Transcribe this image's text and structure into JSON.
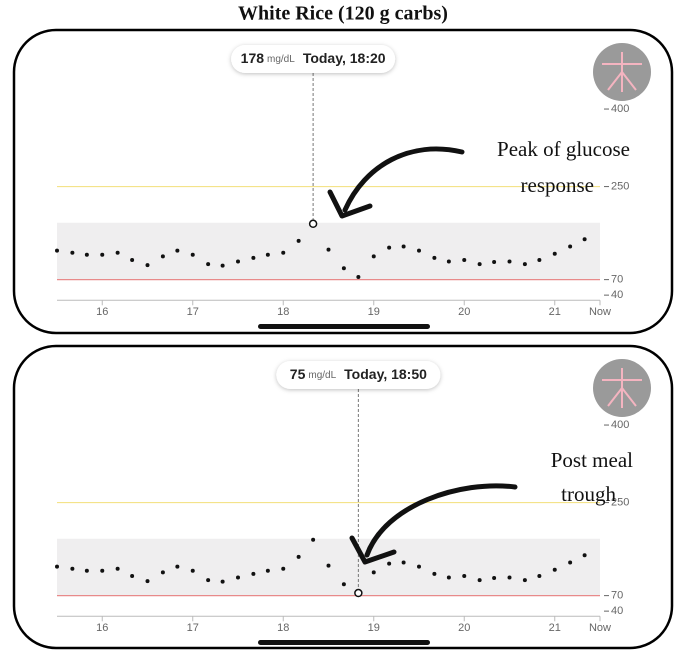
{
  "title": "White Rice (120 g carbs)",
  "chart_data": [
    {
      "type": "scatter",
      "x": [
        15.5,
        15.67,
        15.83,
        16,
        16.17,
        16.33,
        16.5,
        16.67,
        16.83,
        17,
        17.17,
        17.33,
        17.5,
        17.67,
        17.83,
        18,
        18.17,
        18.33,
        18.5,
        18.67,
        18.83,
        19,
        19.17,
        19.33,
        19.5,
        19.67,
        19.83,
        20,
        20.17,
        20.33,
        20.5,
        20.67,
        20.83,
        21,
        21.17,
        21.33
      ],
      "values": [
        126,
        122,
        118,
        118,
        122,
        108,
        98,
        115,
        126,
        118,
        100,
        97,
        105,
        112,
        118,
        122,
        145,
        178,
        128,
        92,
        75,
        115,
        132,
        134,
        126,
        112,
        105,
        108,
        100,
        104,
        105,
        100,
        108,
        120,
        134,
        148
      ],
      "color": "#111111",
      "xlim": [
        15.5,
        21.5
      ],
      "xticks": [
        16,
        17,
        18,
        19,
        20,
        21,
        {
          "value": 21.5,
          "label": "Now"
        }
      ],
      "ylim": [
        30,
        420
      ],
      "yticks": [
        40,
        70,
        250,
        400
      ],
      "target_range": [
        70,
        180
      ],
      "high_line": 250,
      "low_line": 70,
      "tooltip": {
        "x": 18.33,
        "value": 178,
        "unit": "mg/dL",
        "label": "Today, 18:20"
      },
      "annotation": [
        "Peak of glucose",
        "response"
      ]
    },
    {
      "type": "scatter",
      "x": [
        15.5,
        15.67,
        15.83,
        16,
        16.17,
        16.33,
        16.5,
        16.67,
        16.83,
        17,
        17.17,
        17.33,
        17.5,
        17.67,
        17.83,
        18,
        18.17,
        18.33,
        18.5,
        18.67,
        18.83,
        19,
        19.17,
        19.33,
        19.5,
        19.67,
        19.83,
        20,
        20.17,
        20.33,
        20.5,
        20.67,
        20.83,
        21,
        21.17,
        21.33
      ],
      "values": [
        126,
        122,
        118,
        118,
        122,
        108,
        98,
        115,
        126,
        118,
        100,
        97,
        105,
        112,
        118,
        122,
        145,
        178,
        128,
        92,
        75,
        115,
        132,
        134,
        126,
        112,
        105,
        108,
        100,
        104,
        105,
        100,
        108,
        120,
        134,
        148
      ],
      "color": "#111111",
      "xlim": [
        15.5,
        21.5
      ],
      "xticks": [
        16,
        17,
        18,
        19,
        20,
        21,
        {
          "value": 21.5,
          "label": "Now"
        }
      ],
      "ylim": [
        30,
        420
      ],
      "yticks": [
        40,
        70,
        250,
        400
      ],
      "target_range": [
        70,
        180
      ],
      "high_line": 250,
      "low_line": 70,
      "tooltip": {
        "x": 18.83,
        "value": 75,
        "unit": "mg/dL",
        "label": "Today, 18:50"
      },
      "annotation": [
        "Post meal",
        "trough"
      ]
    }
  ]
}
